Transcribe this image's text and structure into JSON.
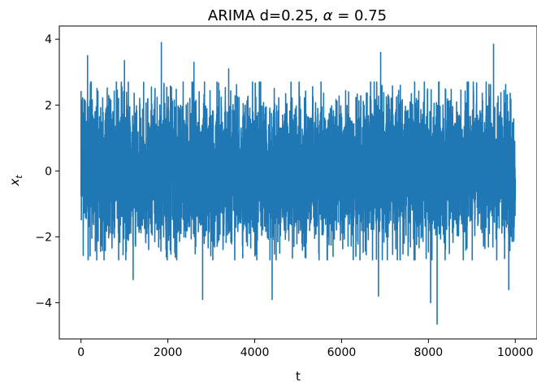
{
  "chart_data": {
    "type": "line",
    "title_text": "ARIMA d=0.25, ",
    "title_symbol": "α",
    "title_rest": " = 0.75",
    "xlabel": "t",
    "ylabel_main": "x",
    "ylabel_sub": "t",
    "xlim": [
      -500,
      10500
    ],
    "ylim": [
      -5.1,
      4.4
    ],
    "xticks": [
      0,
      2000,
      4000,
      6000,
      8000,
      10000
    ],
    "xtick_labels": [
      "0",
      "2000",
      "4000",
      "6000",
      "8000",
      "10000"
    ],
    "yticks": [
      -4,
      -2,
      0,
      2,
      4
    ],
    "ytick_labels": [
      "−4",
      "−2",
      "0",
      "2",
      "4"
    ],
    "grid": false,
    "series": [
      {
        "color": "#1f77b4",
        "n_points": 10000,
        "x_range": [
          0,
          10000
        ],
        "typical_range": [
          -2.1,
          2.3
        ],
        "max": 3.9,
        "min": -4.65,
        "peaks": [
          {
            "x": 150,
            "y": 3.5
          },
          {
            "x": 1000,
            "y": 3.35
          },
          {
            "x": 1850,
            "y": 3.9
          },
          {
            "x": 2600,
            "y": 3.3
          },
          {
            "x": 3400,
            "y": 3.1
          },
          {
            "x": 6900,
            "y": 3.6
          },
          {
            "x": 9500,
            "y": 3.85
          }
        ],
        "troughs": [
          {
            "x": 1200,
            "y": -3.3
          },
          {
            "x": 2800,
            "y": -3.9
          },
          {
            "x": 4400,
            "y": -3.9
          },
          {
            "x": 6850,
            "y": -3.8
          },
          {
            "x": 8050,
            "y": -4.0
          },
          {
            "x": 8200,
            "y": -4.65
          },
          {
            "x": 9850,
            "y": -3.6
          }
        ]
      }
    ]
  }
}
